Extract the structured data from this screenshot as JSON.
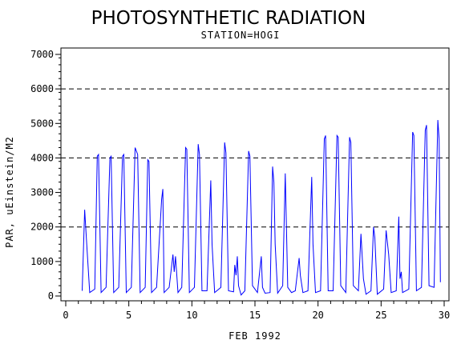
{
  "chart_data": {
    "type": "line",
    "title": "PHOTOSYNTHETIC RADIATION",
    "subtitle": "STATION=HOGI",
    "xlabel": "FEB 1992",
    "ylabel": "PAR, uEinstein/M2",
    "xlim": [
      0,
      30
    ],
    "ylim": [
      0,
      7000
    ],
    "xticks": [
      0,
      5,
      10,
      15,
      20,
      25,
      30
    ],
    "yticks": [
      0,
      1000,
      2000,
      3000,
      4000,
      5000,
      6000,
      7000
    ],
    "reference_lines": [
      2000,
      4000,
      6000
    ],
    "grid": false,
    "line_color": "#0000ff",
    "points": [
      [
        1.3,
        150
      ],
      [
        1.5,
        2500
      ],
      [
        1.7,
        1300
      ],
      [
        1.9,
        100
      ],
      [
        2.3,
        200
      ],
      [
        2.5,
        4050
      ],
      [
        2.6,
        4100
      ],
      [
        2.8,
        100
      ],
      [
        3.2,
        250
      ],
      [
        3.5,
        4000
      ],
      [
        3.6,
        4050
      ],
      [
        3.8,
        100
      ],
      [
        4.2,
        250
      ],
      [
        4.5,
        4050
      ],
      [
        4.6,
        4100
      ],
      [
        4.8,
        100
      ],
      [
        5.2,
        250
      ],
      [
        5.5,
        4300
      ],
      [
        5.7,
        4100
      ],
      [
        5.9,
        100
      ],
      [
        6.3,
        250
      ],
      [
        6.5,
        3950
      ],
      [
        6.6,
        3900
      ],
      [
        6.8,
        100
      ],
      [
        7.2,
        250
      ],
      [
        7.6,
        2800
      ],
      [
        7.7,
        3100
      ],
      [
        7.8,
        100
      ],
      [
        8.2,
        250
      ],
      [
        8.5,
        1200
      ],
      [
        8.6,
        700
      ],
      [
        8.7,
        1150
      ],
      [
        8.9,
        100
      ],
      [
        9.2,
        250
      ],
      [
        9.5,
        4300
      ],
      [
        9.6,
        4250
      ],
      [
        9.8,
        100
      ],
      [
        10.2,
        250
      ],
      [
        10.5,
        4400
      ],
      [
        10.6,
        4100
      ],
      [
        10.8,
        150
      ],
      [
        11.2,
        150
      ],
      [
        11.5,
        3350
      ],
      [
        11.6,
        1500
      ],
      [
        11.8,
        100
      ],
      [
        12.3,
        250
      ],
      [
        12.6,
        4450
      ],
      [
        12.7,
        4150
      ],
      [
        12.9,
        150
      ],
      [
        13.3,
        120
      ],
      [
        13.4,
        900
      ],
      [
        13.5,
        600
      ],
      [
        13.6,
        1150
      ],
      [
        13.7,
        300
      ],
      [
        13.9,
        30
      ],
      [
        14.2,
        150
      ],
      [
        14.5,
        4200
      ],
      [
        14.6,
        4050
      ],
      [
        14.8,
        300
      ],
      [
        15.2,
        100
      ],
      [
        15.5,
        1150
      ],
      [
        15.6,
        250
      ],
      [
        15.8,
        80
      ],
      [
        16.2,
        100
      ],
      [
        16.4,
        3750
      ],
      [
        16.5,
        3300
      ],
      [
        16.6,
        1500
      ],
      [
        16.8,
        80
      ],
      [
        17.2,
        300
      ],
      [
        17.4,
        3550
      ],
      [
        17.6,
        250
      ],
      [
        17.9,
        100
      ],
      [
        18.2,
        150
      ],
      [
        18.5,
        1100
      ],
      [
        18.6,
        600
      ],
      [
        18.8,
        100
      ],
      [
        19.2,
        150
      ],
      [
        19.5,
        3450
      ],
      [
        19.6,
        1500
      ],
      [
        19.8,
        100
      ],
      [
        20.2,
        150
      ],
      [
        20.5,
        4550
      ],
      [
        20.6,
        4650
      ],
      [
        20.8,
        150
      ],
      [
        21.2,
        150
      ],
      [
        21.5,
        4650
      ],
      [
        21.6,
        4600
      ],
      [
        21.8,
        300
      ],
      [
        22.2,
        100
      ],
      [
        22.5,
        4600
      ],
      [
        22.6,
        4450
      ],
      [
        22.8,
        300
      ],
      [
        23.2,
        150
      ],
      [
        23.4,
        1800
      ],
      [
        23.6,
        500
      ],
      [
        23.8,
        50
      ],
      [
        24.2,
        150
      ],
      [
        24.4,
        2000
      ],
      [
        24.5,
        1700
      ],
      [
        24.7,
        50
      ],
      [
        25.2,
        200
      ],
      [
        25.4,
        1900
      ],
      [
        25.6,
        1200
      ],
      [
        25.8,
        100
      ],
      [
        26.2,
        150
      ],
      [
        26.4,
        2300
      ],
      [
        26.5,
        500
      ],
      [
        26.6,
        700
      ],
      [
        26.7,
        100
      ],
      [
        27.2,
        200
      ],
      [
        27.5,
        4750
      ],
      [
        27.6,
        4650
      ],
      [
        27.8,
        150
      ],
      [
        28.2,
        250
      ],
      [
        28.5,
        4800
      ],
      [
        28.6,
        4950
      ],
      [
        28.8,
        300
      ],
      [
        29.2,
        250
      ],
      [
        29.5,
        5100
      ],
      [
        29.6,
        4550
      ],
      [
        29.7,
        400
      ]
    ]
  }
}
